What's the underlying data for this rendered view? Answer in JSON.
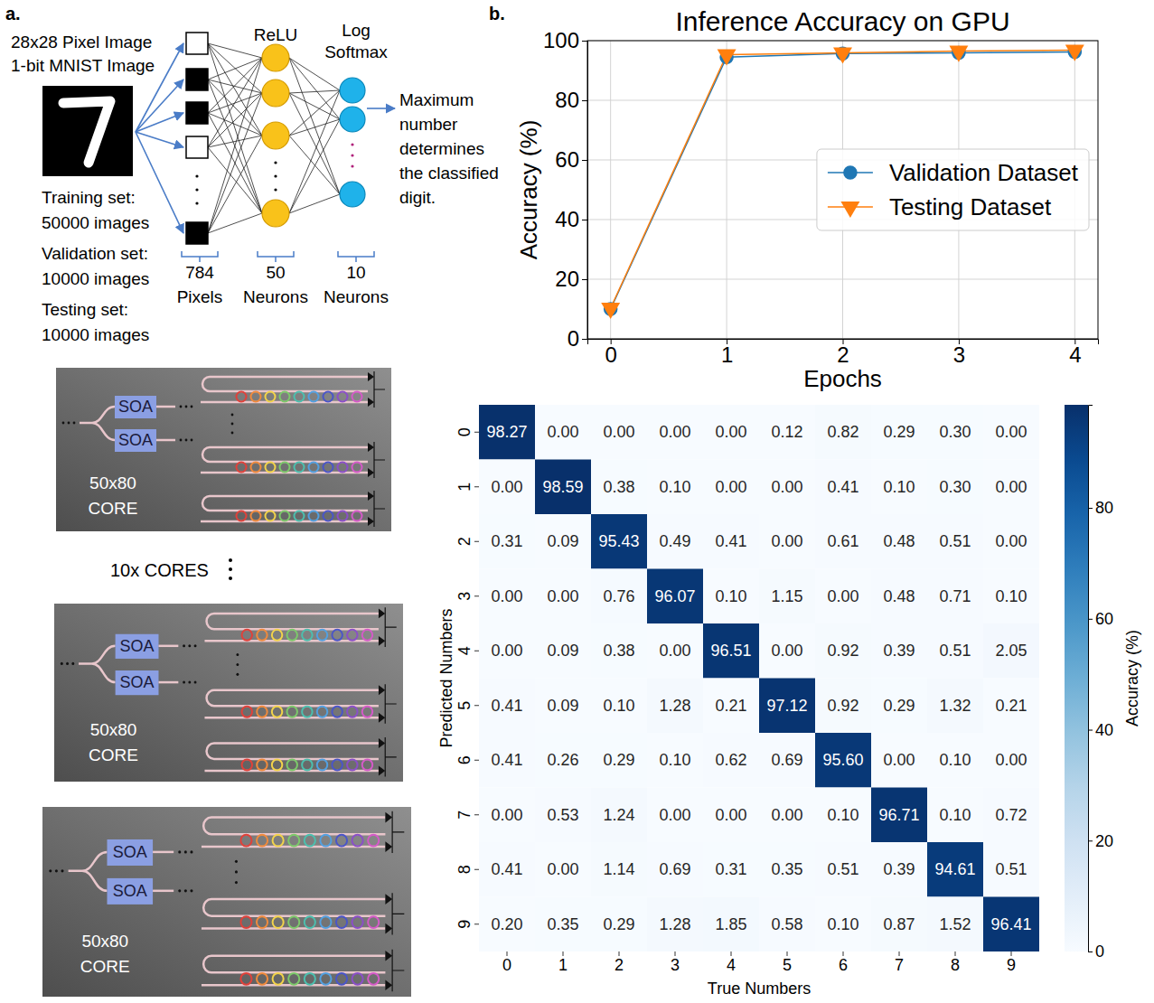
{
  "panel_labels": [
    "a.",
    "b."
  ],
  "diagram": {
    "input_title": [
      "28x28 Pixel Image",
      "1-bit MNIST Image"
    ],
    "dataset_lines": [
      "Training set:",
      "50000 images",
      "Validation set:",
      "10000 images",
      "Testing set:",
      "10000 images"
    ],
    "layers": [
      {
        "bottom": [
          "784",
          "Pixels"
        ]
      },
      {
        "top": [
          "ReLU"
        ],
        "bottom": [
          "50",
          "Neurons"
        ]
      },
      {
        "top": [
          "Log",
          "Softmax"
        ],
        "bottom": [
          "10",
          "Neurons"
        ]
      }
    ],
    "output_note": [
      "Maximum",
      "number",
      "determines",
      "the classified",
      "digit."
    ],
    "cores": [
      {
        "label": [
          "50x80",
          "CORE"
        ],
        "amplifiers": [
          "SOA",
          "SOA"
        ]
      },
      {
        "label": [
          "50x80",
          "CORE"
        ],
        "amplifiers": [
          "SOA",
          "SOA"
        ]
      },
      {
        "label": [
          "50x80",
          "CORE"
        ],
        "amplifiers": [
          "SOA",
          "SOA"
        ]
      }
    ],
    "core_count_label": "10x CORES"
  },
  "chart_data": [
    {
      "type": "line",
      "title": "Inference Accuracy on GPU",
      "x_label": "Epochs",
      "y_label": "Accuracy (%)",
      "x": [
        0,
        1,
        2,
        3,
        4
      ],
      "xlim": [
        -0.2,
        4.2
      ],
      "xticks": [
        0,
        1,
        2,
        3,
        4
      ],
      "ylim": [
        0,
        100
      ],
      "yticks": [
        0,
        20,
        40,
        60,
        80,
        100
      ],
      "grid": true,
      "legend": "right",
      "series": [
        {
          "name": "Validation Dataset",
          "color": "#1f77b4",
          "marker": "circle",
          "line_style": "solid",
          "values": [
            10,
            94.5,
            95.7,
            95.9,
            96.2
          ]
        },
        {
          "name": "Testing Dataset",
          "color": "#ff7f0e",
          "marker": "triangle-down",
          "line_style": "solid",
          "values": [
            10.3,
            95.3,
            95.9,
            96.5,
            96.8
          ]
        }
      ]
    },
    {
      "type": "heatmap",
      "x_label": "True Numbers",
      "y_label": "Predicted Numbers",
      "categories": [
        0,
        1,
        2,
        3,
        4,
        5,
        6,
        7,
        8,
        9
      ],
      "data_labels": true,
      "values": [
        [
          98.27,
          0,
          0,
          0,
          0,
          0.12,
          0.82,
          0.29,
          0.3,
          0
        ],
        [
          0,
          98.59,
          0.38,
          0.1,
          0,
          0,
          0.41,
          0.1,
          0.3,
          0
        ],
        [
          0.31,
          0.09,
          95.43,
          0.49,
          0.41,
          0,
          0.61,
          0.48,
          0.51,
          0
        ],
        [
          0,
          0,
          0.76,
          96.07,
          0.1,
          1.15,
          0,
          0.48,
          0.71,
          0.1
        ],
        [
          0,
          0.09,
          0.38,
          0,
          96.51,
          0,
          0.92,
          0.39,
          0.51,
          2.05
        ],
        [
          0.41,
          0.09,
          0.1,
          1.28,
          0.21,
          97.12,
          0.92,
          0.29,
          1.32,
          0.21
        ],
        [
          0.41,
          0.26,
          0.29,
          0.1,
          0.62,
          0.69,
          95.6,
          0,
          0.1,
          0
        ],
        [
          0,
          0.53,
          1.24,
          0,
          0,
          0,
          0.1,
          96.71,
          0.1,
          0.72
        ],
        [
          0.41,
          0,
          1.14,
          0.69,
          0.31,
          0.35,
          0.51,
          0.39,
          94.61,
          0.51
        ],
        [
          0.2,
          0.35,
          0.29,
          1.28,
          1.85,
          0.58,
          0.1,
          0.87,
          1.52,
          96.41
        ]
      ],
      "value_labels": [
        [
          "98.27",
          "0.00",
          "0.00",
          "0.00",
          "0.00",
          "0.12",
          "0.82",
          "0.29",
          "0.30",
          "0.00"
        ],
        [
          "0.00",
          "98.59",
          "0.38",
          "0.10",
          "0.00",
          "0.00",
          "0.41",
          "0.10",
          "0.30",
          "0.00"
        ],
        [
          "0.31",
          "0.09",
          "95.43",
          "0.49",
          "0.41",
          "0.00",
          "0.61",
          "0.48",
          "0.51",
          "0.00"
        ],
        [
          "0.00",
          "0.00",
          "0.76",
          "96.07",
          "0.10",
          "1.15",
          "0.00",
          "0.48",
          "0.71",
          "0.10"
        ],
        [
          "0.00",
          "0.09",
          "0.38",
          "0.00",
          "96.51",
          "0.00",
          "0.92",
          "0.39",
          "0.51",
          "2.05"
        ],
        [
          "0.41",
          "0.09",
          "0.10",
          "1.28",
          "0.21",
          "97.12",
          "0.92",
          "0.29",
          "1.32",
          "0.21"
        ],
        [
          "0.41",
          "0.26",
          "0.29",
          "0.10",
          "0.62",
          "0.69",
          "95.60",
          "0.00",
          "0.10",
          "0.00"
        ],
        [
          "0.00",
          "0.53",
          "1.24",
          "0.00",
          "0.00",
          "0.00",
          "0.10",
          "96.71",
          "0.10",
          "0.72"
        ],
        [
          "0.41",
          "0.00",
          "1.14",
          "0.69",
          "0.31",
          "0.35",
          "0.51",
          "0.39",
          "94.61",
          "0.51"
        ],
        [
          "0.20",
          "0.35",
          "0.29",
          "1.28",
          "1.85",
          "0.58",
          "0.10",
          "0.87",
          "1.52",
          "96.41"
        ]
      ],
      "colorbar": {
        "label": "Accuracy (%)",
        "range": [
          0,
          98.59
        ],
        "ticks": [
          0,
          20,
          40,
          60,
          80
        ]
      }
    }
  ]
}
